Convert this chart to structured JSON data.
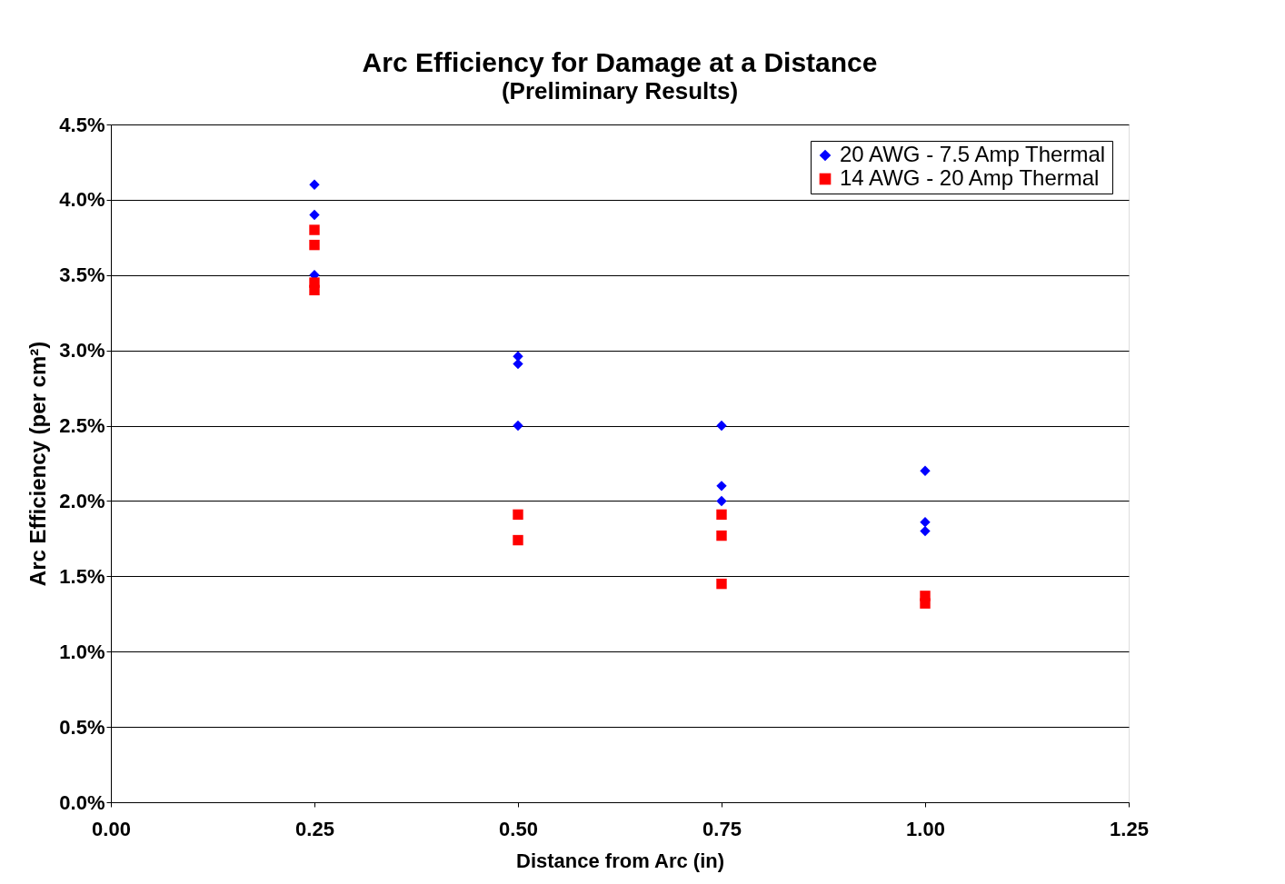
{
  "chart_data": {
    "type": "scatter",
    "title": "Arc Efficiency for Damage at a Distance",
    "subtitle": "(Preliminary Results)",
    "xlabel": "Distance  from Arc (in)",
    "ylabel": "Arc Efficiency (per cm²)",
    "series": [
      {
        "name": "20 AWG - 7.5 Amp Thermal",
        "color": "#0000ff",
        "marker": "diamond",
        "x": [
          0.25,
          0.25,
          0.25,
          0.5,
          0.5,
          0.5,
          0.75,
          0.75,
          0.75,
          1.0,
          1.0,
          1.0
        ],
        "values": [
          4.1,
          3.9,
          3.5,
          2.96,
          2.91,
          2.5,
          2.5,
          2.1,
          2.0,
          2.2,
          1.86,
          1.8
        ]
      },
      {
        "name": "14 AWG - 20 Amp Thermal",
        "color": "#ff0000",
        "marker": "square",
        "x": [
          0.25,
          0.25,
          0.25,
          0.25,
          0.5,
          0.5,
          0.75,
          0.75,
          0.75,
          1.0,
          1.0
        ],
        "values": [
          3.8,
          3.7,
          3.45,
          3.4,
          1.91,
          1.74,
          1.91,
          1.77,
          1.45,
          1.37,
          1.32
        ]
      }
    ],
    "xlim": [
      0,
      1.25
    ],
    "xticks": [
      {
        "value": 0,
        "label": "0.00"
      },
      0.25,
      {
        "value": 0.5,
        "label": "0.50"
      },
      0.75,
      {
        "value": 1,
        "label": "1.00"
      },
      1.25
    ],
    "ylim": [
      0,
      4.5
    ],
    "yticks": [
      {
        "value": 0,
        "label": "0.0%"
      },
      {
        "value": 0.5,
        "label": "0.5%"
      },
      {
        "value": 1,
        "label": "1.0%"
      },
      {
        "value": 1.5,
        "label": "1.5%"
      },
      {
        "value": 2,
        "label": "2.0%"
      },
      {
        "value": 2.5,
        "label": "2.5%"
      },
      {
        "value": 3,
        "label": "3.0%"
      },
      {
        "value": 3.5,
        "label": "3.5%"
      },
      {
        "value": 4,
        "label": "4.0%"
      },
      {
        "value": 4.5,
        "label": "4.5%"
      }
    ],
    "grid": "y",
    "legend": "top right"
  }
}
